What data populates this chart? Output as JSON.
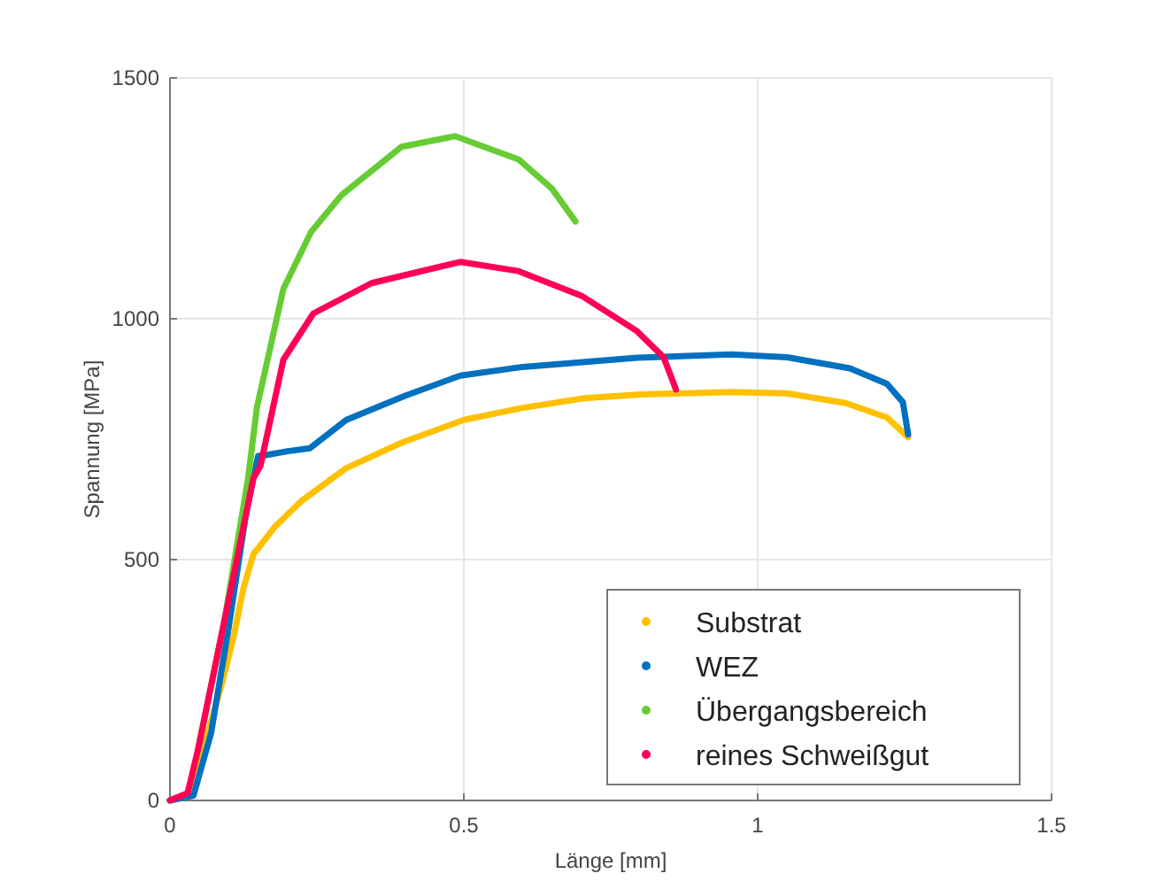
{
  "chart_data": {
    "type": "line",
    "xlabel": "Länge [mm]",
    "ylabel": "Spannung [MPa]",
    "xlim": [
      0,
      1.5
    ],
    "ylim": [
      0,
      1500
    ],
    "xticks": [
      0,
      0.5,
      1,
      1.5
    ],
    "yticks": [
      0,
      500,
      1000,
      1500
    ],
    "grid": true,
    "legend": "bottom right",
    "series": [
      {
        "name": "Substrat",
        "color": "#ffc000",
        "x": [
          0,
          0.03,
          0.06,
          0.09,
          0.108,
          0.125,
          0.142,
          0.18,
          0.223,
          0.3,
          0.395,
          0.5,
          0.6,
          0.705,
          0.8,
          0.955,
          1.05,
          1.15,
          1.22,
          1.256
        ],
        "values": [
          0,
          15,
          120,
          250,
          338,
          440,
          511,
          570,
          621,
          690,
          743,
          790,
          815,
          835,
          843,
          848,
          845,
          825,
          795,
          754
        ]
      },
      {
        "name": "WEZ",
        "color": "#0070c0",
        "x": [
          0,
          0.04,
          0.07,
          0.1,
          0.13,
          0.15,
          0.163,
          0.2,
          0.238,
          0.3,
          0.4,
          0.494,
          0.6,
          0.795,
          0.955,
          1.05,
          1.157,
          1.22,
          1.247,
          1.256
        ],
        "values": [
          0,
          10,
          140,
          360,
          600,
          715,
          717,
          725,
          731,
          790,
          840,
          882,
          900,
          919,
          926,
          920,
          897,
          865,
          827,
          760
        ]
      },
      {
        "name": "Übergangsbereich",
        "color": "#66cc33",
        "x": [
          0.048,
          0.093,
          0.133,
          0.148,
          0.193,
          0.24,
          0.292,
          0.394,
          0.485,
          0.593,
          0.65,
          0.69
        ],
        "values": [
          107,
          375,
          669,
          816,
          1062,
          1180,
          1257,
          1357,
          1379,
          1331,
          1270,
          1202
        ]
      },
      {
        "name": "reines Schweißgut",
        "color": "#ff0055",
        "x": [
          0,
          0.03,
          0.048,
          0.093,
          0.142,
          0.154,
          0.193,
          0.244,
          0.343,
          0.494,
          0.593,
          0.7,
          0.795,
          0.84,
          0.861
        ],
        "values": [
          0,
          15,
          107,
          375,
          669,
          695,
          915,
          1011,
          1074,
          1118,
          1099,
          1048,
          974,
          920,
          853
        ]
      }
    ]
  }
}
